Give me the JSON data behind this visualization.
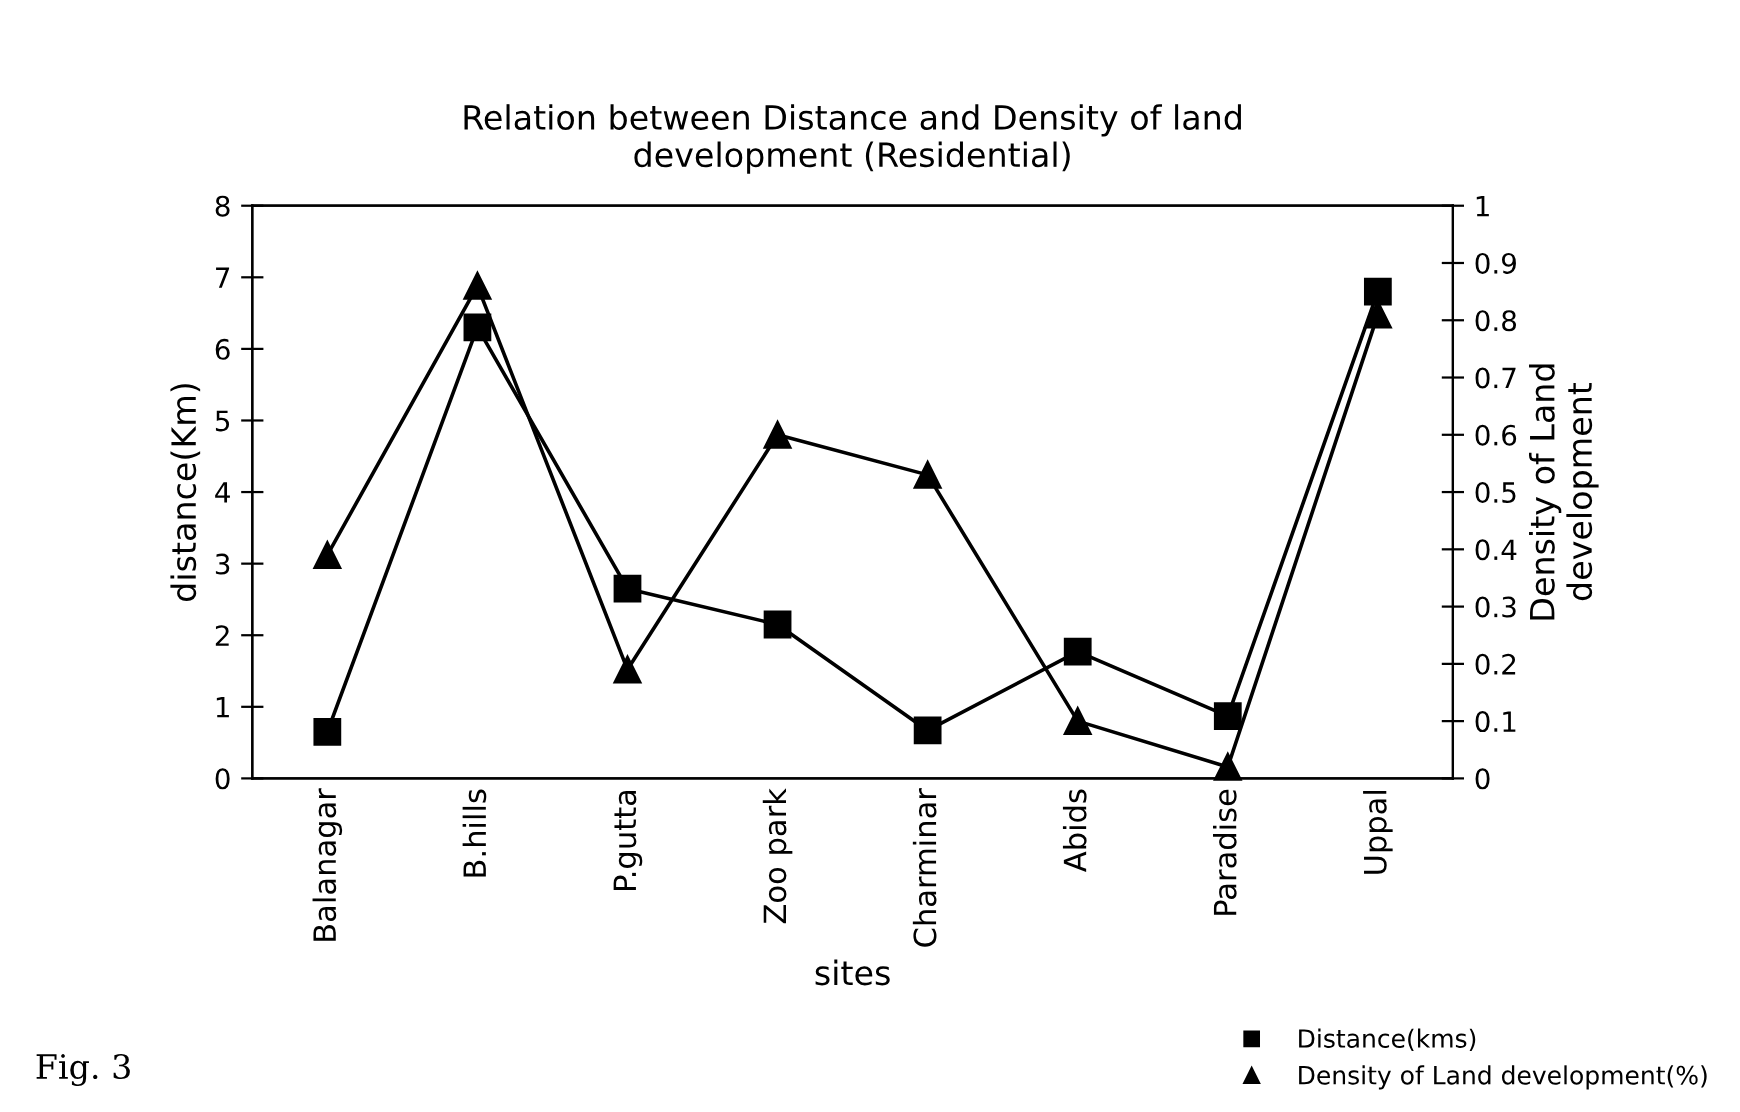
{
  "chart_data": {
    "type": "line",
    "title": "Relation between Distance and Density of land\ndevelopment (Residential)",
    "xlabel": "sites",
    "ylabel": "distance(Km)",
    "y2label": "Density of Land\ndevelopment",
    "categories": [
      "Balanagar",
      "B.hills",
      "P.gutta",
      "Zoo park",
      "Charminar",
      "Abids",
      "Paradise",
      "Uppal"
    ],
    "series": [
      {
        "name": "Distance(kms)",
        "color": "#000000",
        "marker": "square",
        "values": [
          0.65,
          6.3,
          2.65,
          2.15,
          0.67,
          1.77,
          0.87,
          6.8
        ]
      },
      {
        "name": "Density of Land development(%)",
        "color": "#000000",
        "marker": "triangle",
        "axis": "y2",
        "values": [
          0.39,
          0.86,
          0.19,
          0.6,
          0.53,
          0.1,
          0.02,
          0.81
        ]
      }
    ],
    "ylim": [
      0,
      8
    ],
    "yticks": [
      0,
      1,
      2,
      3,
      4,
      5,
      6,
      7,
      8
    ],
    "y2lim": [
      0,
      1
    ],
    "y2ticks": [
      0,
      0.1,
      0.2,
      0.3,
      0.4,
      0.5,
      0.6,
      0.7,
      0.8,
      0.9,
      1
    ],
    "grid": false,
    "legend": "bottom right",
    "line_style": "solid",
    "annotations": [
      "Fig. 3"
    ]
  }
}
